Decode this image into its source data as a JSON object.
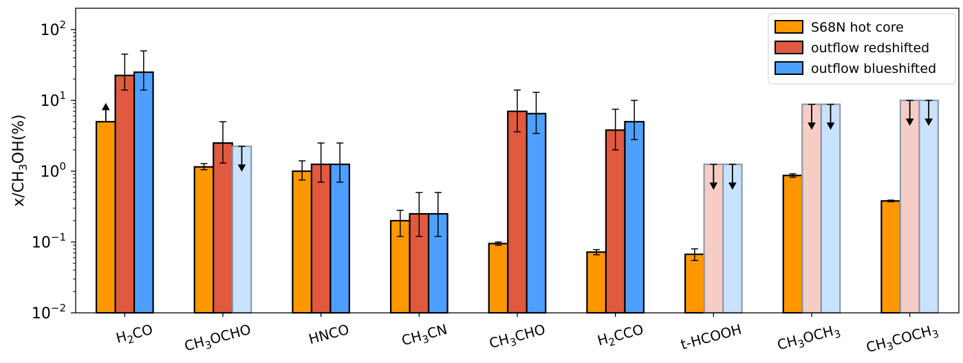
{
  "chart_data": {
    "type": "bar",
    "ylabel": "x/CH$_3$OH(%)",
    "ylabel_parts": [
      {
        "t": "x/CH",
        "sub": false
      },
      {
        "t": "3",
        "sub": true
      },
      {
        "t": "OH(%)",
        "sub": false
      }
    ],
    "yscale": "log",
    "ylim": [
      0.01,
      200
    ],
    "yticks": [
      {
        "value": 0.01,
        "exp": "−2"
      },
      {
        "value": 0.1,
        "exp": "−1"
      },
      {
        "value": 1,
        "exp": "0"
      },
      {
        "value": 10,
        "exp": "1"
      },
      {
        "value": 100,
        "exp": "2"
      }
    ],
    "tick_base": "10",
    "legend_position": "top-right",
    "categories": [
      {
        "label": "H2CO",
        "parts": [
          {
            "t": "H",
            "sub": false
          },
          {
            "t": "2",
            "sub": true
          },
          {
            "t": "CO",
            "sub": false
          }
        ]
      },
      {
        "label": "CH3OCHO",
        "parts": [
          {
            "t": "CH",
            "sub": false
          },
          {
            "t": "3",
            "sub": true
          },
          {
            "t": "OCHO",
            "sub": false
          }
        ]
      },
      {
        "label": "HNCO",
        "parts": [
          {
            "t": "HNCO",
            "sub": false
          }
        ]
      },
      {
        "label": "CH3CN",
        "parts": [
          {
            "t": "CH",
            "sub": false
          },
          {
            "t": "3",
            "sub": true
          },
          {
            "t": "CN",
            "sub": false
          }
        ]
      },
      {
        "label": "CH3CHO",
        "parts": [
          {
            "t": "CH",
            "sub": false
          },
          {
            "t": "3",
            "sub": true
          },
          {
            "t": "CHO",
            "sub": false
          }
        ]
      },
      {
        "label": "H2CCO",
        "parts": [
          {
            "t": "H",
            "sub": false
          },
          {
            "t": "2",
            "sub": true
          },
          {
            "t": "CCO",
            "sub": false
          }
        ]
      },
      {
        "label": "t-HCOOH",
        "parts": [
          {
            "t": "t-HCOOH",
            "sub": false
          }
        ]
      },
      {
        "label": "CH3OCH3",
        "parts": [
          {
            "t": "CH",
            "sub": false
          },
          {
            "t": "3",
            "sub": true
          },
          {
            "t": "OCH",
            "sub": false
          },
          {
            "t": "3",
            "sub": true
          }
        ]
      },
      {
        "label": "CH3COCH3",
        "parts": [
          {
            "t": "CH",
            "sub": false
          },
          {
            "t": "3",
            "sub": true
          },
          {
            "t": "COCH",
            "sub": false
          },
          {
            "t": "3",
            "sub": true
          }
        ]
      }
    ],
    "series": [
      {
        "name": "S68N hot core",
        "color": "#ff9800",
        "values": [
          5.0,
          1.15,
          1.0,
          0.2,
          0.095,
          0.072,
          0.067,
          0.87,
          0.38
        ],
        "err_low": [
          null,
          1.05,
          0.75,
          0.12,
          0.09,
          0.066,
          0.055,
          0.82,
          0.37
        ],
        "err_high": [
          null,
          1.28,
          1.4,
          0.28,
          0.1,
          0.078,
          0.08,
          0.92,
          0.39
        ],
        "upper_limit": [
          false,
          false,
          false,
          false,
          false,
          false,
          false,
          false,
          false
        ],
        "lower_limit": [
          true,
          false,
          false,
          false,
          false,
          false,
          false,
          false,
          false
        ],
        "lower_limit_arrow_top": [
          9.0,
          null,
          null,
          null,
          null,
          null,
          null,
          null,
          null
        ]
      },
      {
        "name": "outflow redshifted",
        "color": "#e05a3f",
        "values": [
          22.5,
          2.5,
          1.25,
          0.25,
          7.0,
          3.8,
          1.25,
          8.8,
          10.0
        ],
        "err_low": [
          14.0,
          1.3,
          0.7,
          0.12,
          3.6,
          2.0,
          null,
          null,
          null
        ],
        "err_high": [
          45.0,
          5.0,
          2.5,
          0.5,
          14.0,
          7.5,
          null,
          null,
          null
        ],
        "upper_limit": [
          false,
          false,
          false,
          false,
          false,
          false,
          true,
          true,
          true
        ],
        "lower_limit": [
          false,
          false,
          false,
          false,
          false,
          false,
          false,
          false,
          false
        ],
        "lower_limit_arrow_top": [
          null,
          null,
          null,
          null,
          null,
          null,
          null,
          null,
          null
        ]
      },
      {
        "name": "outflow blueshifted",
        "color": "#4da0ff",
        "values": [
          25.0,
          2.25,
          1.25,
          0.25,
          6.5,
          5.0,
          1.25,
          8.8,
          10.0
        ],
        "err_low": [
          14.0,
          null,
          0.7,
          0.12,
          3.4,
          2.8,
          null,
          null,
          null
        ],
        "err_high": [
          50.0,
          null,
          2.5,
          0.5,
          13.0,
          10.0,
          null,
          null,
          null
        ],
        "upper_limit": [
          false,
          true,
          false,
          false,
          false,
          false,
          true,
          true,
          true
        ],
        "lower_limit": [
          false,
          false,
          false,
          false,
          false,
          false,
          false,
          false,
          false
        ],
        "lower_limit_arrow_top": [
          null,
          null,
          null,
          null,
          null,
          null,
          null,
          null,
          null
        ]
      }
    ],
    "styles": {
      "axis_color": "#000000",
      "bar_edge": "#000000",
      "limit_edge": "#8e9aaa",
      "limit_alpha": 0.3
    }
  }
}
